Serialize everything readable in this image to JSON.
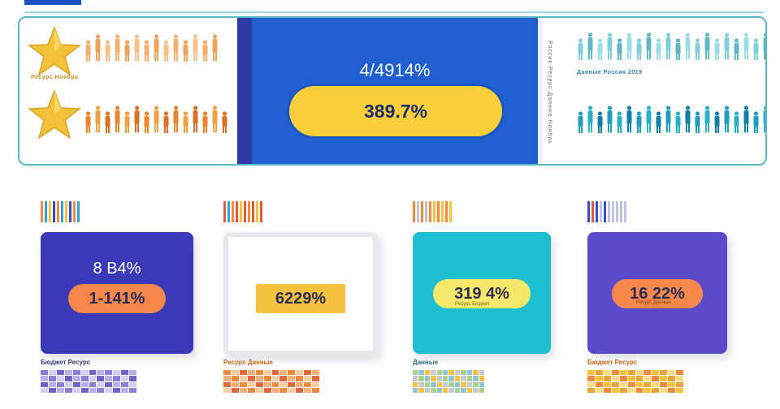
{
  "colors": {
    "accent_blue": "#1f5fd0",
    "navy": "#2d3aa5",
    "gold": "#f8cf3a",
    "orange": "#f08a3c",
    "teal": "#2fb5c8",
    "purple": "#5a4dc8"
  },
  "hero": {
    "left_caption": "Ресурс Ноябрь",
    "center_top_value": "4/4914%",
    "center_pill_value": "389.7%",
    "right_caption": "Данные Россия 2019",
    "side_text": "Россия Ресурс Данные Ноябрь"
  },
  "cards": [
    {
      "top_value": "8 B4%",
      "pill_value": "1-141%",
      "caption": "Бюджет Ресурс",
      "bg": "#3a39b8",
      "pill_bg": "#f5874a"
    },
    {
      "top_value": "",
      "pill_value": "6229%",
      "caption": "Ресурс Данные",
      "bg": "#ffffff",
      "pill_bg": "#f6c23d"
    },
    {
      "top_value": "",
      "pill_value": "319 4%",
      "caption": "Данные",
      "subcaption": "Ресурс Бюджет",
      "bg": "#1dbecf",
      "pill_bg": "#f6e96a"
    },
    {
      "top_value": "",
      "pill_value": "16 22%",
      "caption": "Бюджет Ресурс",
      "subcaption": "Ресурс Данные",
      "bg": "#5b4dca",
      "pill_bg": "#f7894c"
    }
  ]
}
